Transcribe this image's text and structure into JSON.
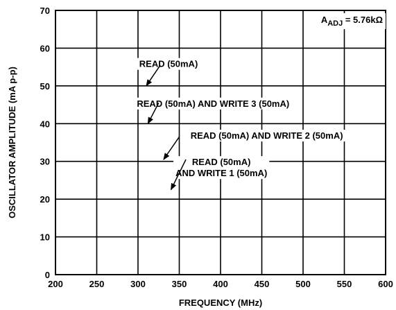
{
  "chart_data": {
    "type": "line",
    "title": "",
    "xlabel": "FREQUENCY (MHz)",
    "ylabel": "OSCILLATOR AMPLITUDE (mA p-p)",
    "xlim": [
      200,
      600
    ],
    "ylim": [
      0,
      70
    ],
    "xticks": [
      200,
      250,
      300,
      350,
      400,
      450,
      500,
      550,
      600
    ],
    "yticks": [
      0,
      10,
      20,
      30,
      40,
      50,
      60,
      70
    ],
    "grid": true,
    "series": [],
    "annotations": [
      {
        "lines": [
          "READ (50mA)"
        ],
        "text_at": [
          337,
          55
        ],
        "arrow_from": [
          327,
          55.5
        ],
        "arrow_to": [
          310,
          50
        ],
        "anchor": "middle"
      },
      {
        "lines": [
          "READ (50mA) AND WRITE 3 (50mA)"
        ],
        "text_at": [
          391,
          44.5
        ],
        "arrow_from": [
          325,
          45.5
        ],
        "arrow_to": [
          312,
          40
        ],
        "anchor": "middle"
      },
      {
        "lines": [
          "READ (50mA) AND WRITE 2 (50mA)"
        ],
        "text_at": [
          456,
          36
        ],
        "arrow_from": [
          350,
          36.5
        ],
        "arrow_to": [
          331,
          30.5
        ],
        "anchor": "middle"
      },
      {
        "lines": [
          "READ (50mA)",
          "AND WRITE 1 (50mA)"
        ],
        "text_at": [
          401,
          29
        ],
        "arrow_from": [
          358,
          30.5
        ],
        "arrow_to": [
          340,
          22.5
        ],
        "anchor": "middle"
      }
    ],
    "param_note": {
      "prefix": "A",
      "subscript": "ADJ",
      "suffix": " = 5.76kΩ"
    }
  }
}
